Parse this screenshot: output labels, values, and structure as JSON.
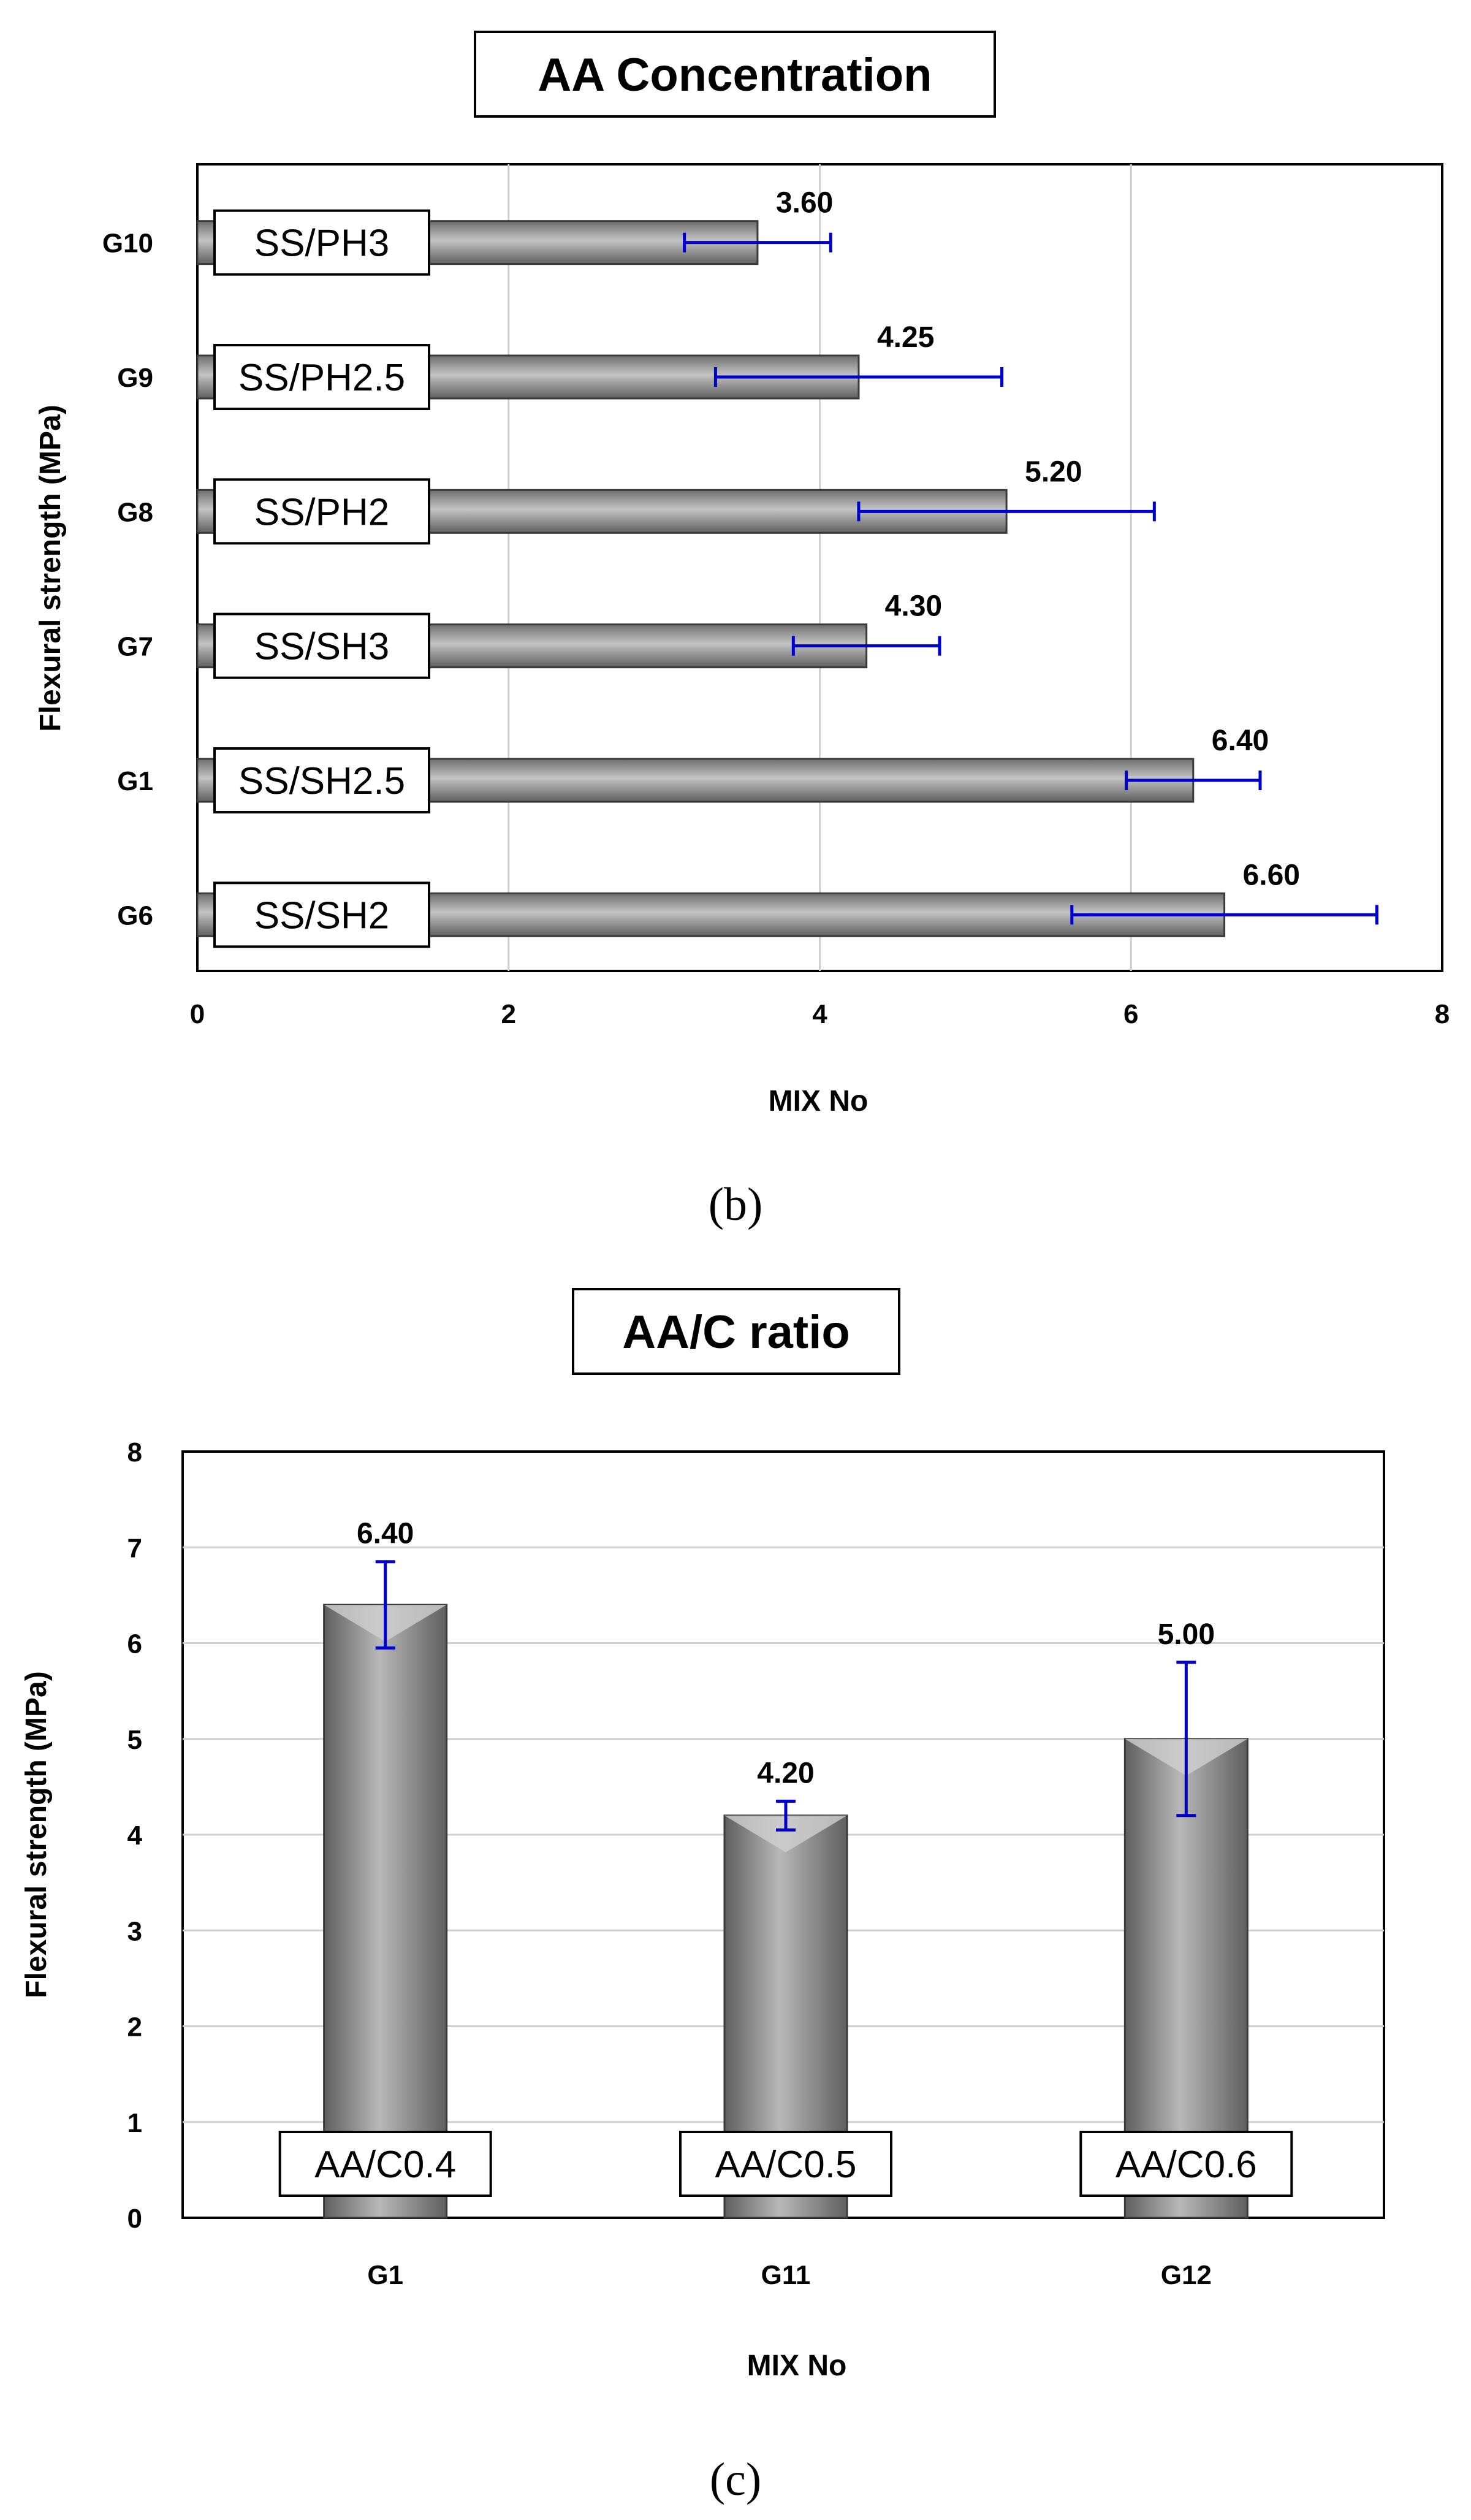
{
  "chart_data": [
    {
      "type": "bar",
      "orientation": "horizontal",
      "title": "AA Concentration",
      "xlabel": "MIX No",
      "ylabel": "Flexural strength (MPa)",
      "xlim": [
        0,
        8
      ],
      "xticks": [
        0,
        2,
        4,
        6,
        8
      ],
      "grid": "vertical",
      "categories": [
        "G10",
        "G9",
        "G8",
        "G7",
        "G1",
        "G6"
      ],
      "bar_labels": [
        "SS/PH3",
        "SS/PH2.5",
        "SS/PH2",
        "SS/SH3",
        "SS/SH2.5",
        "SS/SH2"
      ],
      "values": [
        3.6,
        4.25,
        5.2,
        4.3,
        6.4,
        6.6
      ],
      "value_labels": [
        "3.60",
        "4.25",
        "5.20",
        "4.30",
        "6.40",
        "6.60"
      ],
      "error": [
        0.47,
        0.92,
        0.95,
        0.47,
        0.43,
        0.98
      ],
      "caption": "(b)",
      "bar_color": "#8f8f8f",
      "error_color": "#0000cc"
    },
    {
      "type": "bar",
      "orientation": "vertical",
      "title": "AA/C ratio",
      "xlabel": "MIX No",
      "ylabel": "Flexural strength (MPa)",
      "ylim": [
        0,
        8
      ],
      "yticks": [
        0,
        1,
        2,
        3,
        4,
        5,
        6,
        7,
        8
      ],
      "grid": "horizontal",
      "categories": [
        "G1",
        "G11",
        "G12"
      ],
      "bar_labels": [
        "AA/C0.4",
        "AA/C0.5",
        "AA/C0.6"
      ],
      "values": [
        6.4,
        4.2,
        5.0
      ],
      "value_labels": [
        "6.40",
        "4.20",
        "5.00"
      ],
      "error": [
        0.45,
        0.15,
        0.8
      ],
      "caption": "(c)",
      "bar_color": "#8f8f8f",
      "error_color": "#0000cc"
    }
  ]
}
